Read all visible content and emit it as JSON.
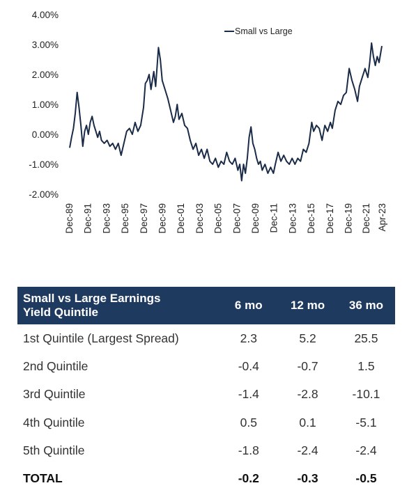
{
  "chart_data": {
    "type": "line",
    "legend": "Small vs Large",
    "legend_position": "top-right",
    "ylim": [
      -2.0,
      4.0
    ],
    "y_ticks": [
      "4.00%",
      "3.00%",
      "2.00%",
      "1.00%",
      "0.00%",
      "-1.00%",
      "-2.00%"
    ],
    "x_ticks": [
      "Dec-89",
      "Dec-91",
      "Dec-93",
      "Dec-95",
      "Dec-97",
      "Dec-99",
      "Dec-01",
      "Dec-03",
      "Dec-05",
      "Dec-07",
      "Dec-09",
      "Dec-11",
      "Dec-13",
      "Dec-15",
      "Dec-17",
      "Dec-19",
      "Dec-21",
      "Apr-23"
    ],
    "series": [
      {
        "name": "Small vs Large",
        "color": "#1a2b48",
        "points": [
          [
            1989.9,
            -0.45
          ],
          [
            1990.1,
            -0.1
          ],
          [
            1990.3,
            0.2
          ],
          [
            1990.5,
            0.7
          ],
          [
            1990.7,
            1.4
          ],
          [
            1990.9,
            0.9
          ],
          [
            1991.1,
            0.3
          ],
          [
            1991.3,
            -0.4
          ],
          [
            1991.5,
            0.1
          ],
          [
            1991.7,
            0.3
          ],
          [
            1991.9,
            0.0
          ],
          [
            1992.1,
            0.4
          ],
          [
            1992.3,
            0.6
          ],
          [
            1992.5,
            0.3
          ],
          [
            1992.7,
            0.1
          ],
          [
            1992.9,
            -0.1
          ],
          [
            1993.1,
            0.1
          ],
          [
            1993.3,
            -0.2
          ],
          [
            1993.6,
            -0.3
          ],
          [
            1993.9,
            -0.2
          ],
          [
            1994.2,
            -0.4
          ],
          [
            1994.5,
            -0.3
          ],
          [
            1994.8,
            -0.5
          ],
          [
            1995.1,
            -0.3
          ],
          [
            1995.4,
            -0.7
          ],
          [
            1995.7,
            -0.3
          ],
          [
            1996.0,
            0.1
          ],
          [
            1996.3,
            0.2
          ],
          [
            1996.6,
            0.0
          ],
          [
            1996.9,
            0.4
          ],
          [
            1997.2,
            0.1
          ],
          [
            1997.5,
            0.3
          ],
          [
            1997.8,
            0.9
          ],
          [
            1998.0,
            1.7
          ],
          [
            1998.2,
            1.8
          ],
          [
            1998.4,
            2.0
          ],
          [
            1998.6,
            1.5
          ],
          [
            1998.9,
            2.1
          ],
          [
            1999.1,
            1.6
          ],
          [
            1999.4,
            2.9
          ],
          [
            1999.6,
            2.5
          ],
          [
            1999.8,
            1.8
          ],
          [
            2000.1,
            1.5
          ],
          [
            2000.4,
            1.2
          ],
          [
            2000.7,
            0.8
          ],
          [
            2001.0,
            0.4
          ],
          [
            2001.2,
            0.6
          ],
          [
            2001.4,
            1.0
          ],
          [
            2001.6,
            0.5
          ],
          [
            2001.9,
            0.7
          ],
          [
            2002.2,
            0.3
          ],
          [
            2002.5,
            0.2
          ],
          [
            2002.8,
            -0.2
          ],
          [
            2003.1,
            -0.5
          ],
          [
            2003.4,
            -0.3
          ],
          [
            2003.7,
            -0.7
          ],
          [
            2004.0,
            -0.5
          ],
          [
            2004.3,
            -0.8
          ],
          [
            2004.6,
            -0.5
          ],
          [
            2004.9,
            -0.9
          ],
          [
            2005.2,
            -1.0
          ],
          [
            2005.5,
            -0.8
          ],
          [
            2005.8,
            -1.1
          ],
          [
            2006.1,
            -0.9
          ],
          [
            2006.4,
            -1.0
          ],
          [
            2006.7,
            -0.6
          ],
          [
            2007.0,
            -0.9
          ],
          [
            2007.3,
            -1.0
          ],
          [
            2007.6,
            -0.8
          ],
          [
            2007.9,
            -1.2
          ],
          [
            2008.1,
            -1.0
          ],
          [
            2008.3,
            -1.55
          ],
          [
            2008.5,
            -1.0
          ],
          [
            2008.7,
            -1.3
          ],
          [
            2008.9,
            -0.8
          ],
          [
            2009.1,
            -0.1
          ],
          [
            2009.3,
            0.25
          ],
          [
            2009.5,
            -0.3
          ],
          [
            2009.7,
            -0.5
          ],
          [
            2009.9,
            -0.8
          ],
          [
            2010.1,
            -1.0
          ],
          [
            2010.3,
            -0.9
          ],
          [
            2010.5,
            -1.2
          ],
          [
            2010.8,
            -1.0
          ],
          [
            2011.1,
            -1.3
          ],
          [
            2011.4,
            -1.1
          ],
          [
            2011.7,
            -1.3
          ],
          [
            2011.9,
            -1.0
          ],
          [
            2012.2,
            -0.6
          ],
          [
            2012.5,
            -0.9
          ],
          [
            2012.8,
            -0.7
          ],
          [
            2013.1,
            -0.9
          ],
          [
            2013.4,
            -1.0
          ],
          [
            2013.7,
            -0.8
          ],
          [
            2014.0,
            -1.0
          ],
          [
            2014.3,
            -0.8
          ],
          [
            2014.6,
            -0.9
          ],
          [
            2014.9,
            -0.5
          ],
          [
            2015.2,
            -0.6
          ],
          [
            2015.5,
            -0.3
          ],
          [
            2015.8,
            0.4
          ],
          [
            2016.0,
            0.1
          ],
          [
            2016.3,
            0.3
          ],
          [
            2016.6,
            0.2
          ],
          [
            2016.9,
            -0.2
          ],
          [
            2017.2,
            0.3
          ],
          [
            2017.5,
            0.1
          ],
          [
            2017.8,
            0.4
          ],
          [
            2018.0,
            0.2
          ],
          [
            2018.3,
            0.8
          ],
          [
            2018.6,
            1.1
          ],
          [
            2018.9,
            1.0
          ],
          [
            2019.2,
            1.3
          ],
          [
            2019.5,
            1.4
          ],
          [
            2019.8,
            2.2
          ],
          [
            2020.1,
            1.8
          ],
          [
            2020.4,
            1.5
          ],
          [
            2020.7,
            1.1
          ],
          [
            2020.9,
            1.6
          ],
          [
            2021.2,
            1.9
          ],
          [
            2021.5,
            2.2
          ],
          [
            2021.8,
            1.9
          ],
          [
            2022.0,
            2.4
          ],
          [
            2022.2,
            3.05
          ],
          [
            2022.4,
            2.6
          ],
          [
            2022.6,
            2.3
          ],
          [
            2022.8,
            2.6
          ],
          [
            2023.0,
            2.4
          ],
          [
            2023.3,
            2.95
          ]
        ]
      }
    ]
  },
  "table": {
    "header": {
      "label_line1": "Small vs Large Earnings",
      "label_line2": "Yield Quintile",
      "col1": "6 mo",
      "col2": "12 mo",
      "col3": "36 mo"
    },
    "rows": [
      {
        "label": "1st Quintile (Largest Spread)",
        "v1": "2.3",
        "v2": "5.2",
        "v3": "25.5"
      },
      {
        "label": "2nd Quintile",
        "v1": "-0.4",
        "v2": "-0.7",
        "v3": "1.5"
      },
      {
        "label": "3rd Quintile",
        "v1": "-1.4",
        "v2": "-2.8",
        "v3": "-10.1"
      },
      {
        "label": "4th Quintile",
        "v1": "0.5",
        "v2": "0.1",
        "v3": "-5.1"
      },
      {
        "label": "5th Quintile",
        "v1": "-1.8",
        "v2": "-2.4",
        "v3": "-2.4"
      }
    ],
    "total": {
      "label": "TOTAL",
      "v1": "-0.2",
      "v2": "-0.3",
      "v3": "-0.5"
    }
  }
}
